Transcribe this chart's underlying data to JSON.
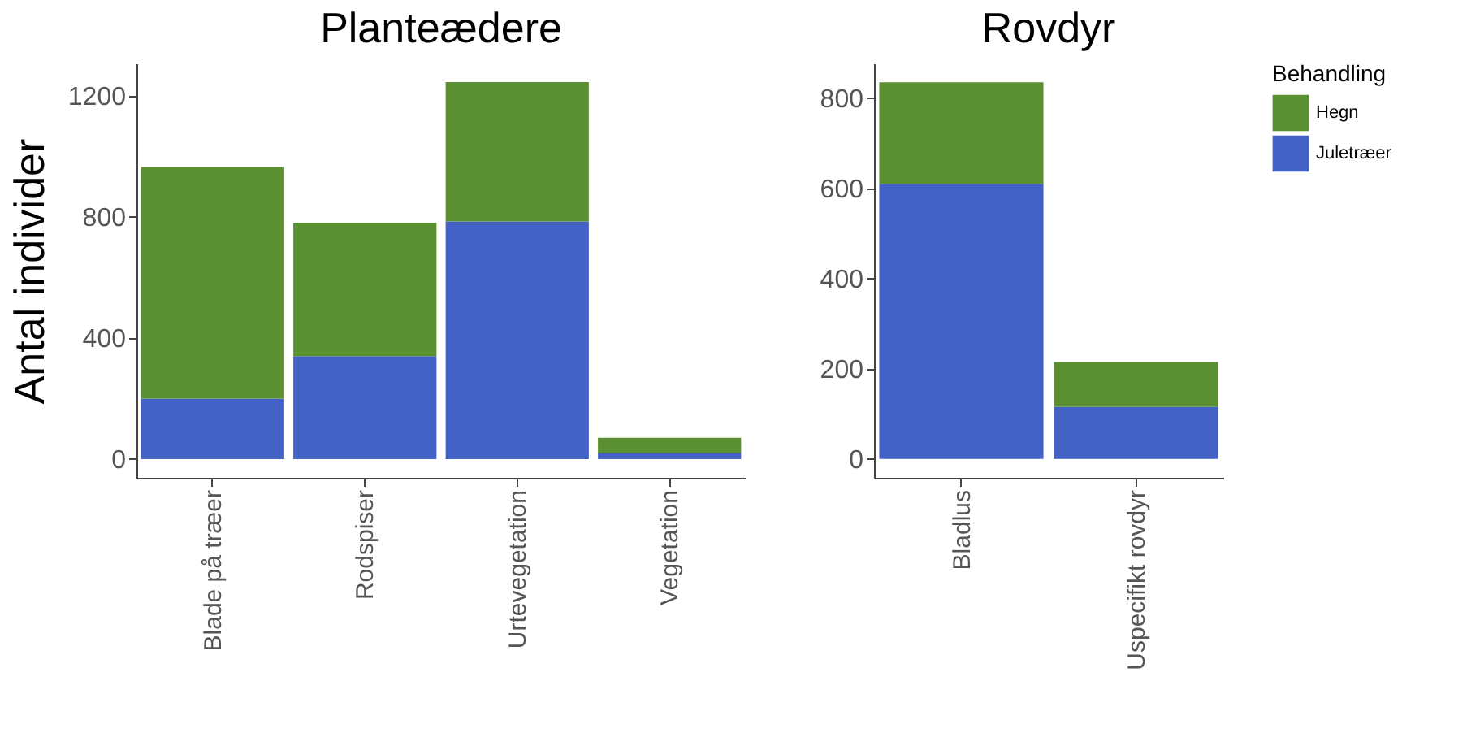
{
  "chart_data": [
    {
      "type": "bar",
      "title": "Planteædere",
      "ylabel": "Antal individer",
      "stacked": true,
      "categories": [
        "Blade på træer",
        "Rodspiser",
        "Urtevegetation",
        "Vegetation"
      ],
      "series": [
        {
          "name": "Juletræer",
          "color": "#4360c4",
          "values": [
            200,
            340,
            785,
            20
          ]
        },
        {
          "name": "Hegn",
          "color": "#5a8f32",
          "values": [
            765,
            440,
            460,
            50
          ]
        }
      ],
      "ylim": [
        -62,
        1307
      ],
      "yticks": [
        0,
        400,
        800,
        1200
      ],
      "grid": false,
      "legend": "right"
    },
    {
      "type": "bar",
      "title": "Rovdyr",
      "legend_title": "Behandling",
      "stacked": true,
      "categories": [
        "Bladlus",
        "Uspecifikt rovdyr"
      ],
      "series": [
        {
          "name": "Juletræer",
          "color": "#4360c4",
          "values": [
            610,
            115
          ]
        },
        {
          "name": "Hegn",
          "color": "#5a8f32",
          "values": [
            225,
            100
          ]
        }
      ],
      "ylim": [
        -42,
        877
      ],
      "yticks": [
        0,
        200,
        400,
        600,
        800
      ],
      "grid": false,
      "legend": "right"
    }
  ]
}
